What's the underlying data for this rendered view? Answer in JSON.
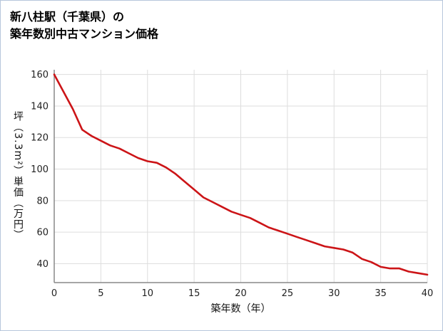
{
  "page": {
    "title_line1": "新八柱駅（千葉県）の",
    "title_line2": "築年数別中古マンション価格"
  },
  "colors": {
    "line": "#cc1417",
    "grid": "#dddddd",
    "axis": "#888888",
    "tick_text": "#222222",
    "page_border": "#b7c6dc"
  },
  "chart_data": {
    "type": "line",
    "title": "新八柱駅（千葉県）の築年数別中古マンション価格",
    "xlabel": "築年数（年）",
    "ylabel": "坪（3.3m²）単価（万円）",
    "x": [
      0,
      1,
      2,
      3,
      4,
      5,
      6,
      7,
      8,
      9,
      10,
      11,
      12,
      13,
      14,
      15,
      16,
      17,
      18,
      19,
      20,
      21,
      22,
      23,
      24,
      25,
      26,
      27,
      28,
      29,
      30,
      31,
      32,
      33,
      34,
      35,
      36,
      37,
      38,
      39,
      40
    ],
    "values": [
      160,
      149,
      138,
      125,
      121,
      118,
      115,
      113,
      110,
      107,
      105,
      104,
      101,
      97,
      92,
      87,
      82,
      79,
      76,
      73,
      71,
      69,
      66,
      63,
      61,
      59,
      57,
      55,
      53,
      51,
      50,
      49,
      47,
      43,
      41,
      38,
      37,
      37,
      35,
      34,
      33
    ],
    "series_name": "坪（3.3m²）単価（万円）",
    "xticks": [
      0,
      5,
      10,
      15,
      20,
      25,
      30,
      35,
      40
    ],
    "yticks": [
      40,
      60,
      80,
      100,
      120,
      140,
      160
    ],
    "xlim": [
      0,
      40
    ],
    "ylim": [
      28,
      163
    ],
    "grid": true,
    "legend": "none"
  }
}
